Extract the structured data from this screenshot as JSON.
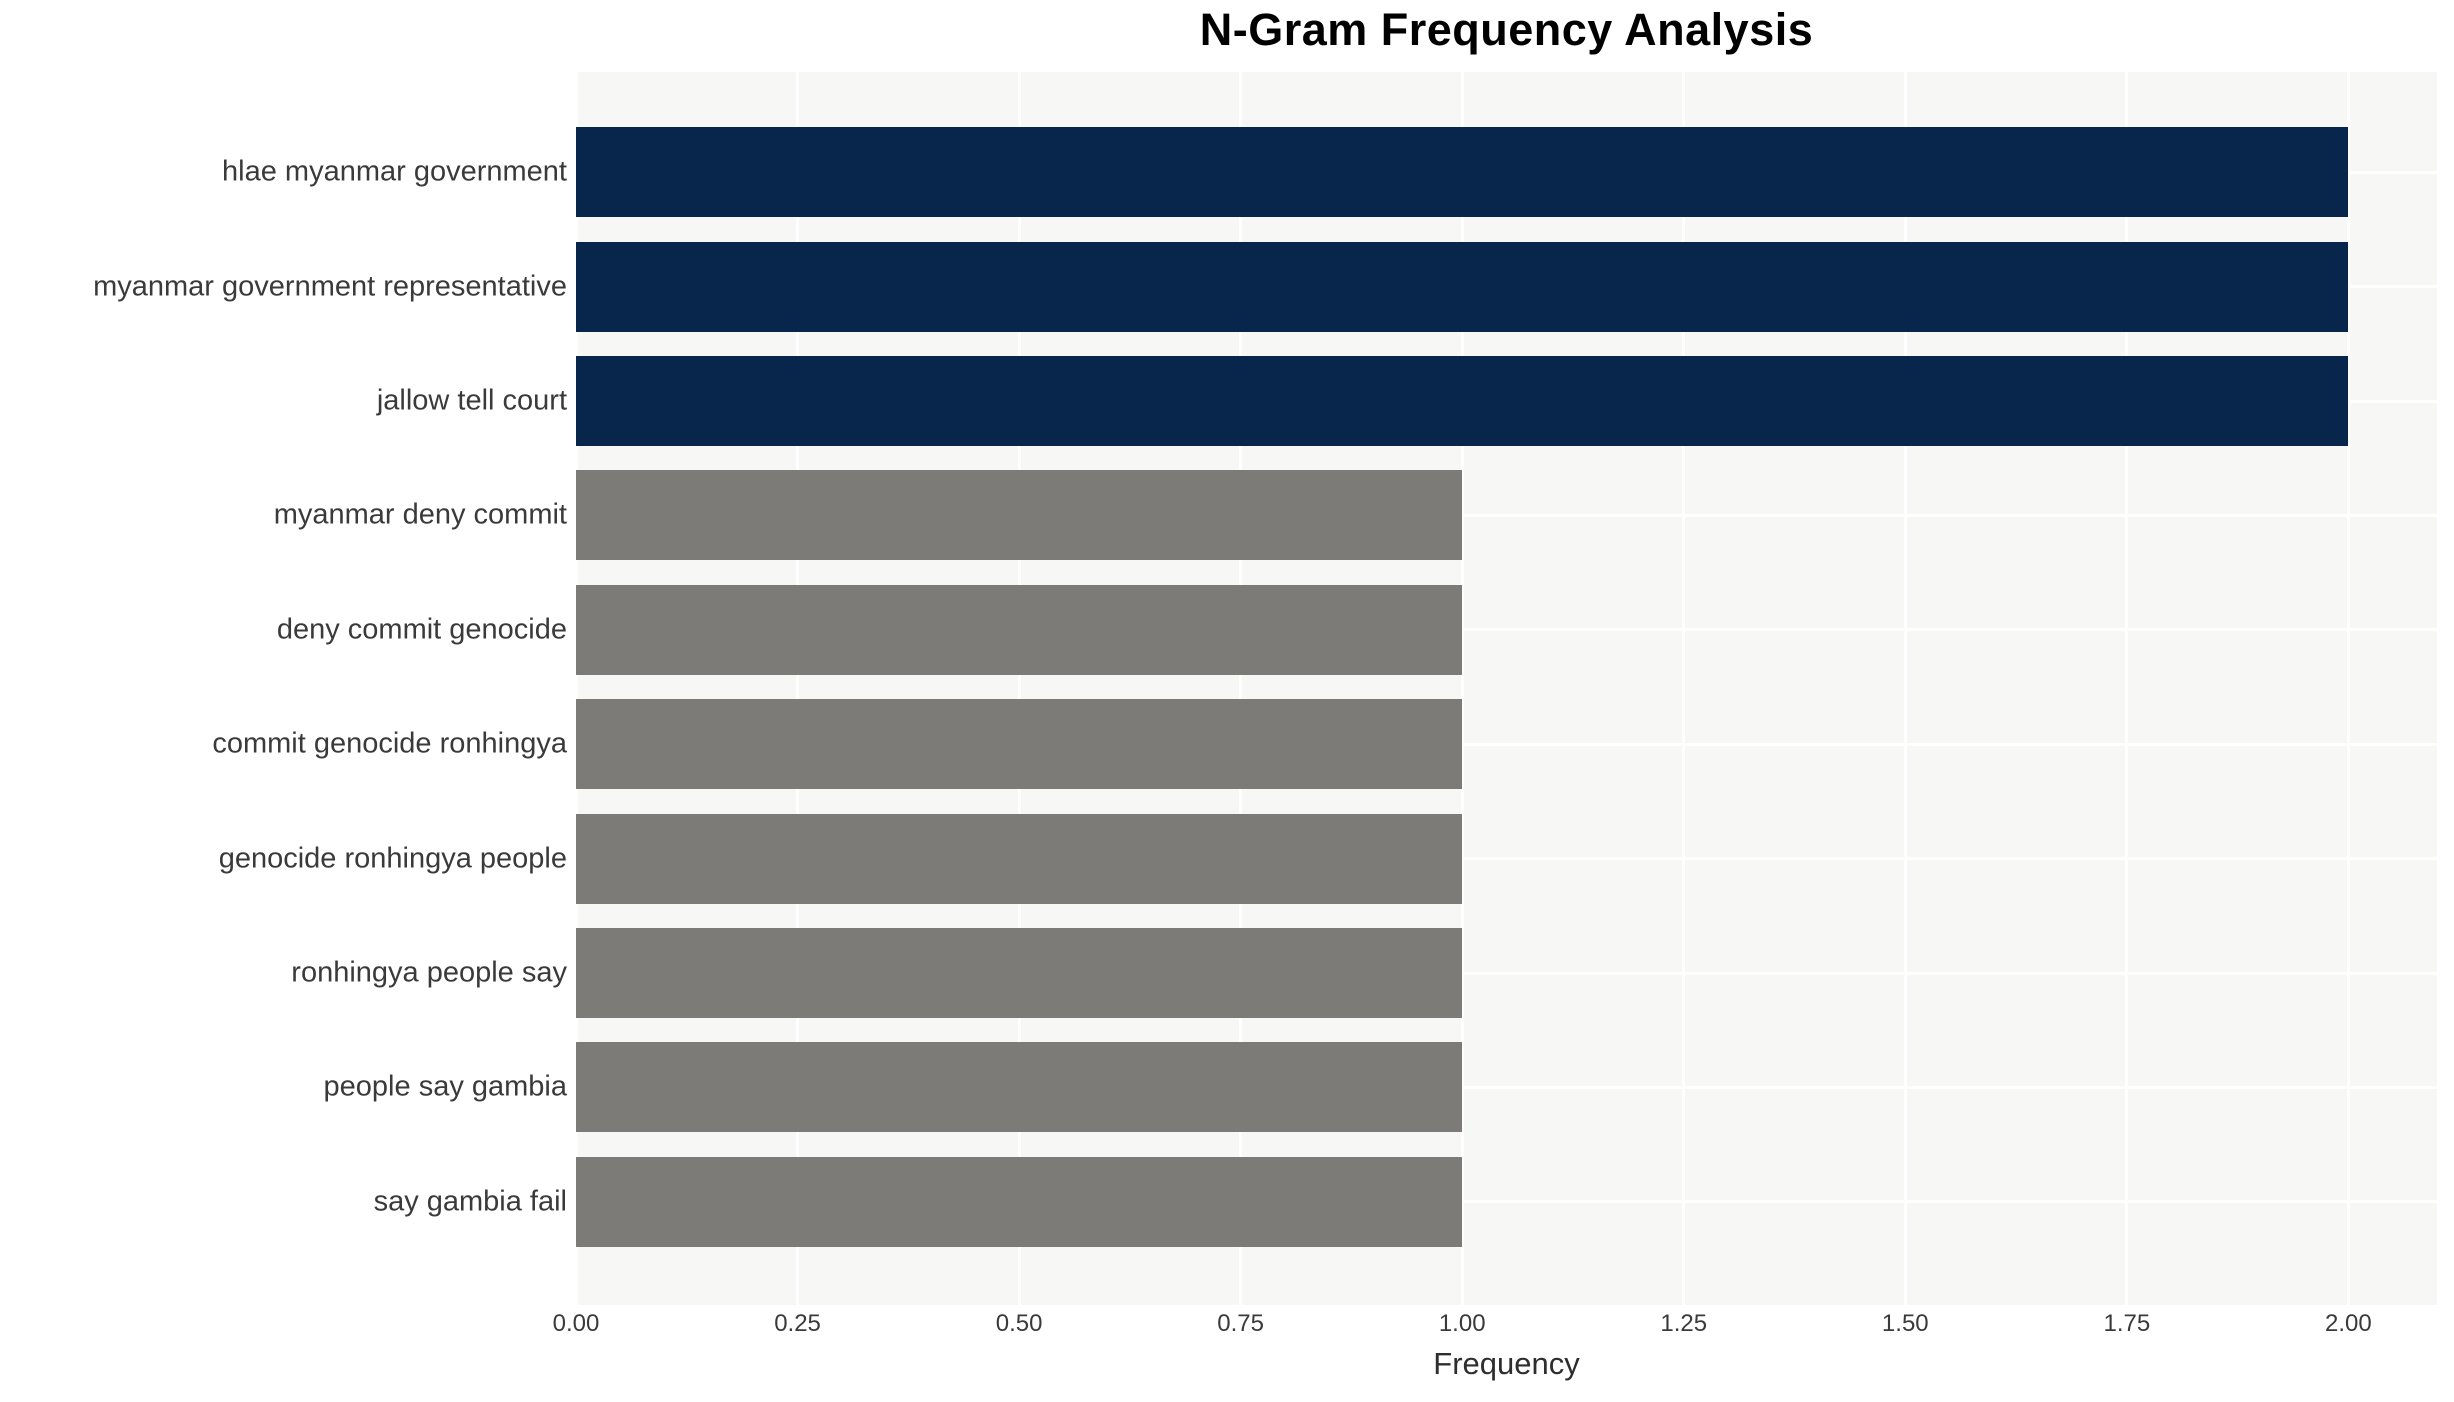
{
  "chart_data": {
    "type": "bar",
    "orientation": "horizontal",
    "title": "N-Gram Frequency Analysis",
    "xlabel": "Frequency",
    "ylabel": "",
    "categories": [
      "hlae myanmar government",
      "myanmar government representative",
      "jallow tell court",
      "myanmar deny commit",
      "deny commit genocide",
      "commit genocide ronhingya",
      "genocide ronhingya people",
      "ronhingya people say",
      "people say gambia",
      "say gambia fail"
    ],
    "values": [
      2,
      2,
      2,
      1,
      1,
      1,
      1,
      1,
      1,
      1
    ],
    "xlim": [
      0,
      2.1
    ],
    "x_tick_values": [
      0,
      0.25,
      0.5,
      0.75,
      1.0,
      1.25,
      1.5,
      1.75,
      2.0
    ],
    "x_tick_labels": [
      "0.00",
      "0.25",
      "0.50",
      "0.75",
      "1.00",
      "1.25",
      "1.50",
      "1.75",
      "2.00"
    ],
    "grid": true,
    "legend": false,
    "colors": {
      "highlight": "#08264c",
      "default": "#7c7b77",
      "plot_background": "#f7f7f6",
      "gridline": "#ffffff"
    },
    "bar_colors": [
      "#08264c",
      "#08264c",
      "#08264c",
      "#7c7b77",
      "#7c7b77",
      "#7c7b77",
      "#7c7b77",
      "#7c7b77",
      "#7c7b77",
      "#7c7b77"
    ]
  }
}
